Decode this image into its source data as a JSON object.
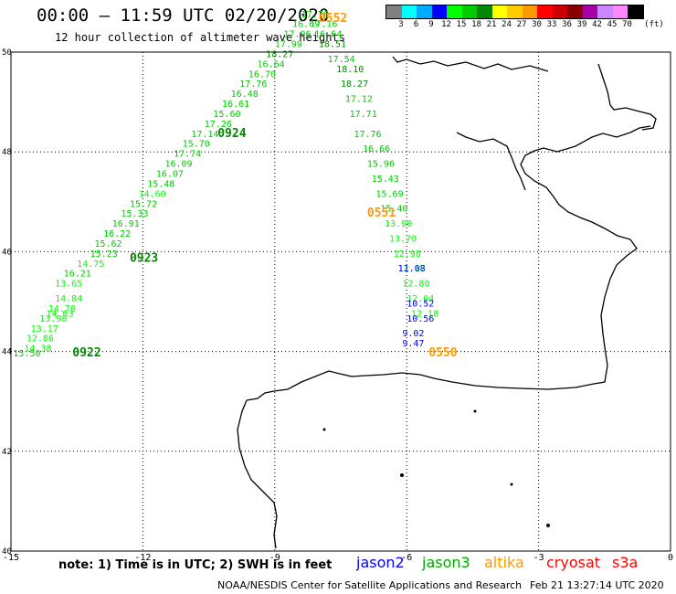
{
  "header": {
    "title": "00:00 – 11:59 UTC 02/20/2020",
    "subtitle": "12 hour collection of altimeter wave heights"
  },
  "scale": {
    "unit": "(ft)",
    "colors": [
      "#808080",
      "#00ffff",
      "#00aaff",
      "#0000ff",
      "#00ff00",
      "#00cc00",
      "#008800",
      "#ffff00",
      "#ffcc00",
      "#ff9900",
      "#ff0000",
      "#cc0000",
      "#880000",
      "#aa00aa",
      "#cc88ff",
      "#ff88ff",
      "#000000"
    ],
    "labels": [
      "3",
      "6",
      "9",
      "12",
      "15",
      "18",
      "21",
      "24",
      "27",
      "30",
      "33",
      "36",
      "39",
      "42",
      "45",
      "70"
    ]
  },
  "chart_data": {
    "type": "scatter",
    "title": "00:00 – 11:59 UTC 02/20/2020",
    "subtitle": "12 hour collection of altimeter wave heights",
    "xlim": [
      -15,
      0
    ],
    "ylim": [
      40,
      50
    ],
    "x_ticks": [
      "-15",
      "-12",
      "-9",
      "-6",
      "-3",
      "0"
    ],
    "y_ticks": [
      "50",
      "48",
      "46",
      "44",
      "42",
      "40"
    ],
    "grid": true,
    "series": [
      {
        "name": "jason3",
        "passes": [
          {
            "label": "0922",
            "color": "#008800",
            "lon": -13.6,
            "lat": 43.9
          },
          {
            "label": "0923",
            "color": "#008800",
            "lon": -12.3,
            "lat": 45.8
          },
          {
            "label": "0924",
            "color": "#008800",
            "lon": -10.3,
            "lat": 48.3
          }
        ],
        "points": [
          {
            "v": "15.50",
            "lon": -14.95,
            "lat": 43.9,
            "c": "#00cc00"
          },
          {
            "v": "14.38",
            "lon": -14.7,
            "lat": 44.0,
            "c": "#00ff00"
          },
          {
            "v": "12.86",
            "lon": -14.65,
            "lat": 44.2,
            "c": "#00ff00"
          },
          {
            "v": "13.17",
            "lon": -14.55,
            "lat": 44.4,
            "c": "#00ff00"
          },
          {
            "v": "13.98",
            "lon": -14.35,
            "lat": 44.6,
            "c": "#00ff00"
          },
          {
            "v": "14.76",
            "lon": -14.15,
            "lat": 44.8,
            "c": "#00ff00"
          },
          {
            "v": "14.84",
            "lon": -14.0,
            "lat": 45.0,
            "c": "#00ff00"
          },
          {
            "v": "14.63",
            "lon": -14.2,
            "lat": 44.7,
            "c": "#00ff00"
          },
          {
            "v": "13.65",
            "lon": -14.0,
            "lat": 45.3,
            "c": "#00ff00"
          },
          {
            "v": "16.21",
            "lon": -13.8,
            "lat": 45.5,
            "c": "#00cc00"
          },
          {
            "v": "14.75",
            "lon": -13.5,
            "lat": 45.7,
            "c": "#00ff00"
          },
          {
            "v": "15.23",
            "lon": -13.2,
            "lat": 45.9,
            "c": "#00cc00"
          },
          {
            "v": "15.62",
            "lon": -13.1,
            "lat": 46.1,
            "c": "#00cc00"
          },
          {
            "v": "16.22",
            "lon": -12.9,
            "lat": 46.3,
            "c": "#00cc00"
          },
          {
            "v": "16.91",
            "lon": -12.7,
            "lat": 46.5,
            "c": "#00cc00"
          },
          {
            "v": "15.33",
            "lon": -12.5,
            "lat": 46.7,
            "c": "#00cc00"
          },
          {
            "v": "15.72",
            "lon": -12.3,
            "lat": 46.9,
            "c": "#00cc00"
          },
          {
            "v": "14.60",
            "lon": -12.1,
            "lat": 47.1,
            "c": "#00ff00"
          },
          {
            "v": "15.48",
            "lon": -11.9,
            "lat": 47.3,
            "c": "#00cc00"
          },
          {
            "v": "16.07",
            "lon": -11.7,
            "lat": 47.5,
            "c": "#00cc00"
          },
          {
            "v": "16.09",
            "lon": -11.5,
            "lat": 47.7,
            "c": "#00cc00"
          },
          {
            "v": "17.74",
            "lon": -11.3,
            "lat": 47.9,
            "c": "#00cc00"
          },
          {
            "v": "15.70",
            "lon": -11.1,
            "lat": 48.1,
            "c": "#00cc00"
          },
          {
            "v": "17.14",
            "lon": -10.9,
            "lat": 48.3,
            "c": "#00cc00"
          },
          {
            "v": "17.26",
            "lon": -10.6,
            "lat": 48.5,
            "c": "#00cc00"
          },
          {
            "v": "15.60",
            "lon": -10.4,
            "lat": 48.7,
            "c": "#00cc00"
          },
          {
            "v": "16.61",
            "lon": -10.2,
            "lat": 48.9,
            "c": "#00cc00"
          },
          {
            "v": "16.48",
            "lon": -10.0,
            "lat": 49.1,
            "c": "#00cc00"
          },
          {
            "v": "17.76",
            "lon": -9.8,
            "lat": 49.3,
            "c": "#00cc00"
          },
          {
            "v": "16.70",
            "lon": -9.6,
            "lat": 49.5,
            "c": "#00cc00"
          },
          {
            "v": "16.64",
            "lon": -9.4,
            "lat": 49.7,
            "c": "#00cc00"
          },
          {
            "v": "18.27",
            "lon": -9.2,
            "lat": 49.9,
            "c": "#008800"
          },
          {
            "v": "17.99",
            "lon": -9.0,
            "lat": 50.1,
            "c": "#00cc00"
          },
          {
            "v": "17.96",
            "lon": -8.8,
            "lat": 50.3,
            "c": "#00cc00"
          },
          {
            "v": "16.69",
            "lon": -8.6,
            "lat": 50.5,
            "c": "#00cc00"
          },
          {
            "v": "17.76",
            "lon": -8.4,
            "lat": 50.7,
            "c": "#00cc00"
          },
          {
            "v": "17.16",
            "lon": -8.2,
            "lat": 50.5,
            "c": "#00cc00"
          },
          {
            "v": "16.64",
            "lon": -8.1,
            "lat": 50.3,
            "c": "#00cc00"
          },
          {
            "v": "18.51",
            "lon": -8.0,
            "lat": 50.1,
            "c": "#008800"
          },
          {
            "v": "17.54",
            "lon": -7.8,
            "lat": 49.8,
            "c": "#00cc00"
          },
          {
            "v": "18.10",
            "lon": -7.6,
            "lat": 49.6,
            "c": "#008800"
          },
          {
            "v": "18.27",
            "lon": -7.5,
            "lat": 49.3,
            "c": "#008800"
          },
          {
            "v": "17.12",
            "lon": -7.4,
            "lat": 49.0,
            "c": "#00cc00"
          },
          {
            "v": "17.71",
            "lon": -7.3,
            "lat": 48.7,
            "c": "#00cc00"
          },
          {
            "v": "17.76",
            "lon": -7.2,
            "lat": 48.3,
            "c": "#00cc00"
          },
          {
            "v": "16.66",
            "lon": -7.0,
            "lat": 48.0,
            "c": "#00cc00"
          },
          {
            "v": "15.96",
            "lon": -6.9,
            "lat": 47.7,
            "c": "#00cc00"
          },
          {
            "v": "15.43",
            "lon": -6.8,
            "lat": 47.4,
            "c": "#00cc00"
          },
          {
            "v": "15.69",
            "lon": -6.7,
            "lat": 47.1,
            "c": "#00cc00"
          },
          {
            "v": "15.40",
            "lon": -6.6,
            "lat": 46.8,
            "c": "#00cc00"
          },
          {
            "v": "13.90",
            "lon": -6.5,
            "lat": 46.5,
            "c": "#00ff00"
          },
          {
            "v": "13.70",
            "lon": -6.4,
            "lat": 46.2,
            "c": "#00ff00"
          },
          {
            "v": "12.98",
            "lon": -6.3,
            "lat": 45.9,
            "c": "#00ff00"
          },
          {
            "v": "12.17",
            "lon": -6.2,
            "lat": 45.6,
            "c": "#00ff00"
          },
          {
            "v": "12.80",
            "lon": -6.1,
            "lat": 45.3,
            "c": "#00ff00"
          },
          {
            "v": "12.04",
            "lon": -6.0,
            "lat": 45.0,
            "c": "#00ff00"
          },
          {
            "v": "12.18",
            "lon": -5.9,
            "lat": 44.7,
            "c": "#00ff00"
          }
        ]
      },
      {
        "name": "jason2",
        "points": [
          {
            "v": "11.08",
            "lon": -6.2,
            "lat": 45.6,
            "c": "#0000ff"
          },
          {
            "v": "10.52",
            "lon": -6.0,
            "lat": 44.9,
            "c": "#0000ff"
          },
          {
            "v": "10.56",
            "lon": -6.0,
            "lat": 44.6,
            "c": "#0000ff"
          },
          {
            "v": "9.02",
            "lon": -6.1,
            "lat": 44.3,
            "c": "#0000ff"
          },
          {
            "v": "9.47",
            "lon": -6.1,
            "lat": 44.1,
            "c": "#0000ff"
          }
        ]
      },
      {
        "name": "altika",
        "passes": [
          {
            "label": "0550",
            "color": "#ff9900",
            "lon": -5.5,
            "lat": 43.9
          },
          {
            "label": "0551",
            "color": "#ff9900",
            "lon": -6.9,
            "lat": 46.7
          },
          {
            "label": "0552",
            "color": "#ff9900",
            "lon": -8.0,
            "lat": 50.6
          }
        ]
      }
    ]
  },
  "note": "note: 1) Time is in UTC; 2) SWH is in feet",
  "legend": [
    {
      "name": "jason2",
      "color": "#0000ff"
    },
    {
      "name": "jason3",
      "color": "#00aa00"
    },
    {
      "name": "altika",
      "color": "#ff9900"
    },
    {
      "name": "cryosat",
      "color": "#ff0000"
    },
    {
      "name": "s3a",
      "color": "#ff0000"
    }
  ],
  "footer": {
    "credit": "NOAA/NESDIS Center for Satellite Applications and Research",
    "timestamp": "Feb 21 13:27:14 UTC 2020"
  }
}
